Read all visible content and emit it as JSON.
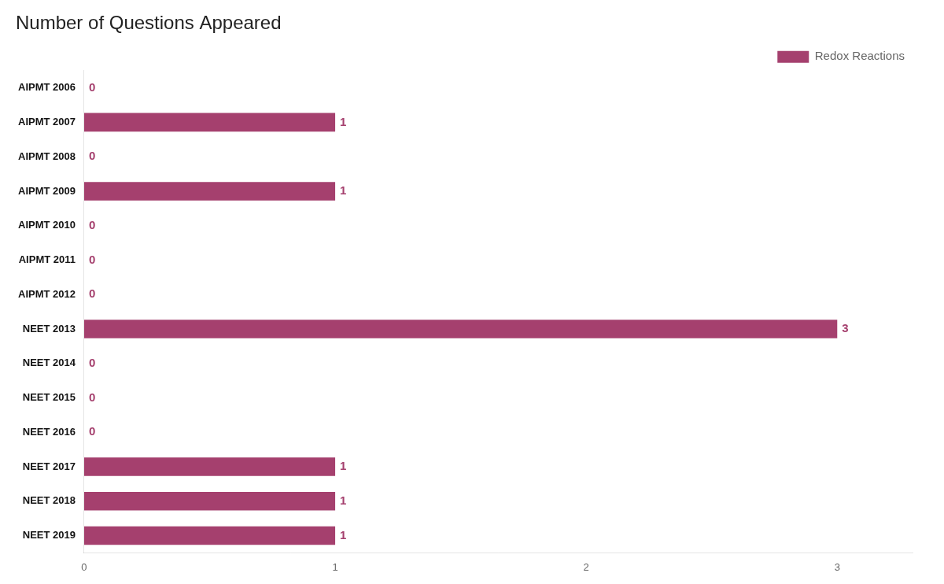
{
  "chart_data": {
    "type": "bar",
    "orientation": "horizontal",
    "title": "Number of Questions Appeared",
    "categories": [
      "AIPMT 2006",
      "AIPMT 2007",
      "AIPMT 2008",
      "AIPMT 2009",
      "AIPMT 2010",
      "AIPMT 2011",
      "AIPMT 2012",
      "NEET 2013",
      "NEET 2014",
      "NEET 2015",
      "NEET 2016",
      "NEET 2017",
      "NEET 2018",
      "NEET 2019"
    ],
    "series": [
      {
        "name": "Redox Reactions",
        "color": "#a5406e",
        "values": [
          0,
          1,
          0,
          1,
          0,
          0,
          0,
          3,
          0,
          0,
          0,
          1,
          1,
          1
        ]
      }
    ],
    "xlim": [
      0,
      3.3
    ],
    "xticks": [
      0,
      1,
      2,
      3
    ],
    "grid": false,
    "legend": "upper right",
    "data_labels": true
  }
}
